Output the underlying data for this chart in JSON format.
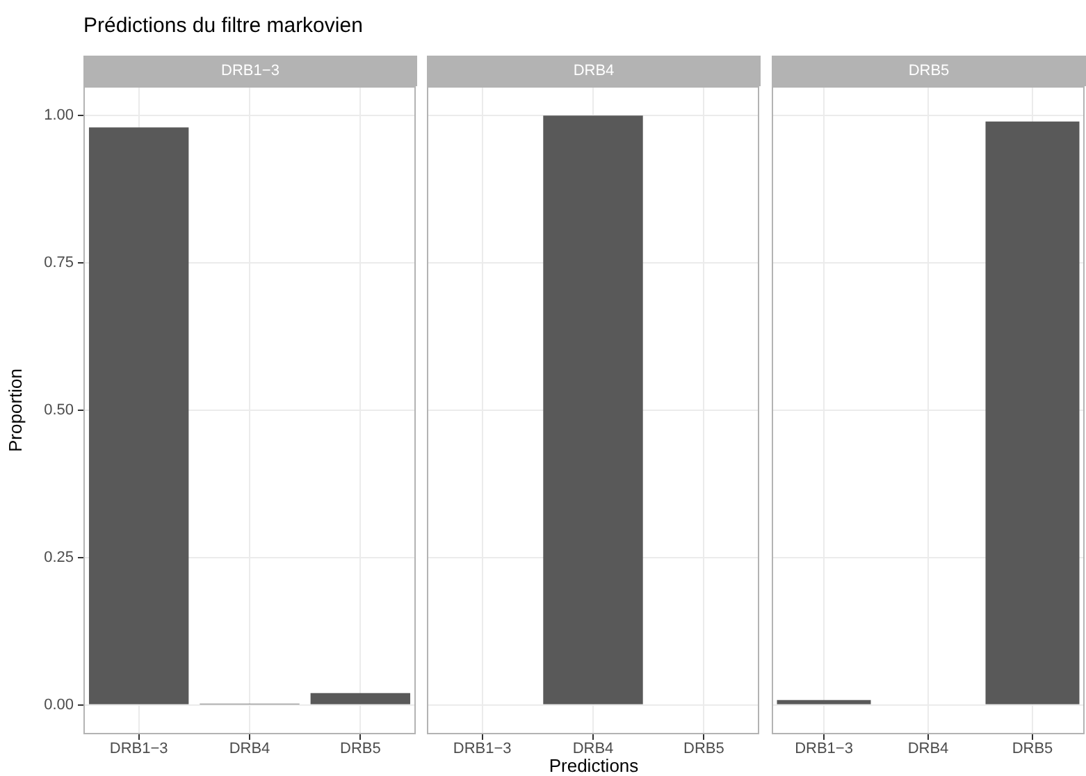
{
  "chart_data": [
    {
      "type": "bar",
      "title": "Prédictions du filtre markovien",
      "subtitle": "DRB1−3",
      "ylabel": "Proportion",
      "categories": [
        "DRB1−3",
        "DRB4",
        "DRB5"
      ],
      "values": [
        0.98,
        0.002,
        0.02
      ],
      "color": "#595959",
      "ylim": [
        -0.05,
        1.05
      ],
      "yticks": [
        {
          "value": 0,
          "label": "0.00"
        },
        {
          "value": 0.25,
          "label": "0.25"
        },
        {
          "value": 0.5,
          "label": "0.50"
        },
        {
          "value": 0.75,
          "label": "0.75"
        },
        {
          "value": 1,
          "label": "1.00"
        }
      ],
      "grid": true,
      "legend": false
    },
    {
      "type": "bar",
      "subtitle": "DRB4",
      "xlabel": "Predictions",
      "categories": [
        "DRB1−3",
        "DRB4",
        "DRB5"
      ],
      "values": [
        0,
        1,
        0
      ],
      "color": "#595959",
      "ylim": [
        -0.05,
        1.05
      ],
      "yticks": [
        0,
        0.25,
        0.5,
        0.75,
        1
      ],
      "grid": true,
      "legend": false,
      "tick_labels": "x"
    },
    {
      "type": "bar",
      "subtitle": "DRB5",
      "categories": [
        "DRB1−3",
        "DRB4",
        "DRB5"
      ],
      "values": [
        0.008,
        0,
        0.99
      ],
      "color": "#595959",
      "ylim": [
        -0.05,
        1.05
      ],
      "yticks": [
        0,
        0.25,
        0.5,
        0.75,
        1
      ],
      "grid": true,
      "legend": false,
      "tick_labels": "x"
    }
  ]
}
